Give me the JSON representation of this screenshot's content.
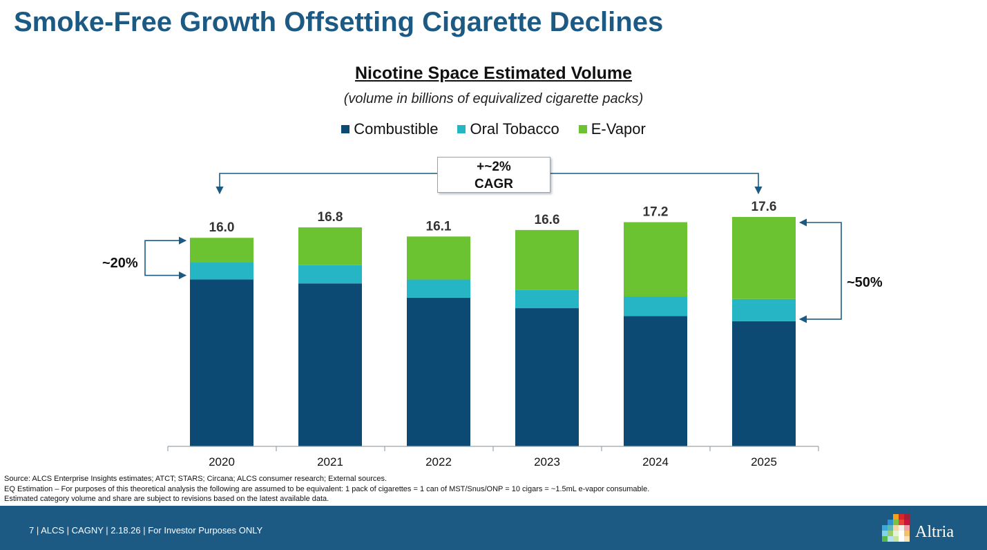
{
  "slide": {
    "title": "Smoke-Free Growth Offsetting Cigarette Declines"
  },
  "chart_data": {
    "type": "bar",
    "stacked": true,
    "title": "Nicotine Space Estimated Volume",
    "subtitle": "(volume in billions of equivalized cigarette packs)",
    "categories": [
      "2020",
      "2021",
      "2022",
      "2023",
      "2024",
      "2025"
    ],
    "series": [
      {
        "name": "Combustible",
        "color": "#0d4a73",
        "values": [
          12.8,
          12.5,
          11.4,
          10.6,
          10.0,
          9.6
        ]
      },
      {
        "name": "Oral Tobacco",
        "color": "#26b5c4",
        "values": [
          1.3,
          1.4,
          1.4,
          1.4,
          1.5,
          1.7
        ]
      },
      {
        "name": "E-Vapor",
        "color": "#6cc332",
        "values": [
          1.9,
          2.9,
          3.3,
          4.6,
          5.7,
          6.3
        ]
      }
    ],
    "totals": [
      "16.0",
      "16.8",
      "16.1",
      "16.6",
      "17.2",
      "17.6"
    ],
    "legend_position": "top-center",
    "grid": false,
    "ylim": [
      0,
      17.6
    ],
    "annotations": {
      "cagr_line1": "+~2%",
      "cagr_line2": "CAGR",
      "share_2020": "~20%",
      "share_2025": "~50%"
    }
  },
  "footnotes": {
    "line1": "Source: ALCS Enterprise Insights estimates; ATCT; STARS; Circana; ALCS consumer research; External sources.",
    "line2": "EQ Estimation – For purposes of this theoretical analysis the following are assumed to be equivalent: 1 pack of cigarettes = 1 can of MST/Snus/ONP = 10 cigars = ~1.5mL e-vapor consumable.",
    "line3": "Estimated category volume and share are subject to revisions based on the latest available data."
  },
  "footer": {
    "text": "7 |  ALCS | CAGNY | 2.18.26 | For Investor Purposes ONLY",
    "logo_text": "Altria",
    "logo_icon": "altria-mosaic-icon",
    "background_color": "#1c5a84"
  }
}
